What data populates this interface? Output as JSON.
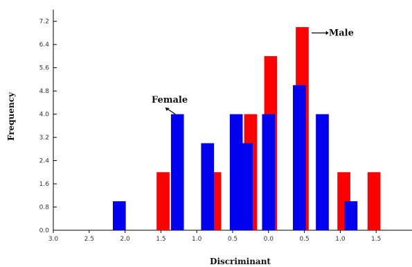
{
  "chart_data": {
    "type": "bar",
    "xlabel": "Discriminant",
    "ylabel": "Frequency",
    "xlim": [
      -3.0,
      2.0
    ],
    "ylim": [
      0,
      7.6
    ],
    "x_ticks": [
      -3.0,
      -2.5,
      -2.0,
      -1.5,
      -1.0,
      -0.5,
      0.0,
      0.5,
      1.0,
      1.5
    ],
    "x_tick_labels": [
      "3.0",
      "2.5",
      "2.0",
      "1.5",
      "1.0",
      "0.5",
      "0.0",
      "0.5",
      "1.0",
      "1.5"
    ],
    "y_ticks": [
      0.0,
      0.8,
      1.6,
      2.4,
      3.2,
      4.0,
      4.8,
      5.6,
      6.4,
      7.2
    ],
    "y_tick_labels": [
      "0.0",
      "0.8",
      "1.6",
      "2.4",
      "3.2",
      "4.0",
      "4.8",
      "5.6",
      "6.4",
      "7.2"
    ],
    "grid": false,
    "series": [
      {
        "name": "Male",
        "color": "#ff0000",
        "bars": [
          {
            "x": -1.47,
            "value": 2.0
          },
          {
            "x": -0.75,
            "value": 2.0
          },
          {
            "x": -0.25,
            "value": 4.0
          },
          {
            "x": 0.03,
            "value": 6.0
          },
          {
            "x": 0.47,
            "value": 7.0
          },
          {
            "x": 1.05,
            "value": 2.0
          },
          {
            "x": 1.47,
            "value": 2.0
          }
        ]
      },
      {
        "name": "Female",
        "color": "#0000ee",
        "bars": [
          {
            "x": -2.08,
            "value": 1.0
          },
          {
            "x": -1.27,
            "value": 4.0
          },
          {
            "x": -0.85,
            "value": 3.0
          },
          {
            "x": -0.45,
            "value": 4.0
          },
          {
            "x": -0.31,
            "value": 3.0
          },
          {
            "x": 0.0,
            "value": 4.0
          },
          {
            "x": 0.43,
            "value": 5.0
          },
          {
            "x": 0.75,
            "value": 4.0
          },
          {
            "x": 1.15,
            "value": 1.0
          }
        ]
      }
    ],
    "annotations": [
      {
        "text": "Male",
        "series": "Male"
      },
      {
        "text": "Female",
        "series": "Female"
      }
    ]
  }
}
